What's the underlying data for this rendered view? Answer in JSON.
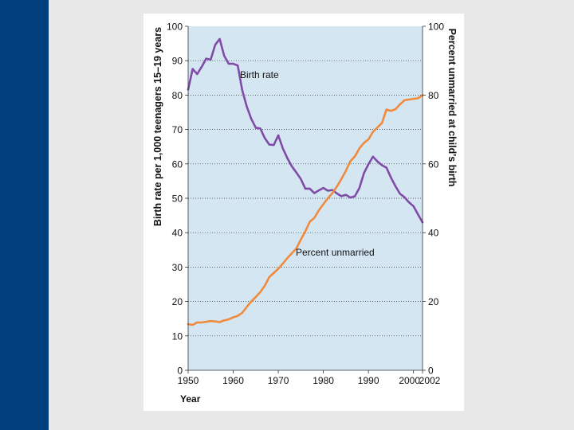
{
  "chart_data": {
    "type": "line",
    "xlabel": "Year",
    "ylabel_left": "Birth rate per 1,000 teenagers 15–19 years",
    "ylabel_right": "Percent unmarried at child's birth",
    "xlim": [
      1950,
      2002
    ],
    "ylim_left": [
      0,
      100
    ],
    "ylim_right": [
      0,
      100
    ],
    "x_ticks": [
      1950,
      1960,
      1970,
      1980,
      1990,
      2000,
      2002
    ],
    "y_ticks_left": [
      0,
      10,
      20,
      30,
      40,
      50,
      60,
      70,
      80,
      90,
      100
    ],
    "y_ticks_right": [
      0,
      20,
      40,
      60,
      80,
      100
    ],
    "grid": "horizontal dotted",
    "plot_background": "#d5e6f3",
    "series": [
      {
        "name": "Birth rate",
        "axis": "left",
        "color": "#7f4ba6",
        "label": "Birth rate",
        "x": [
          1950,
          1951,
          1952,
          1953,
          1954,
          1955,
          1956,
          1957,
          1958,
          1959,
          1960,
          1961,
          1962,
          1963,
          1964,
          1965,
          1966,
          1967,
          1968,
          1969,
          1970,
          1971,
          1972,
          1973,
          1974,
          1975,
          1976,
          1977,
          1978,
          1979,
          1980,
          1981,
          1982,
          1983,
          1984,
          1985,
          1986,
          1987,
          1988,
          1989,
          1990,
          1991,
          1992,
          1993,
          1994,
          1995,
          1996,
          1997,
          1998,
          1999,
          2000,
          2001,
          2002
        ],
        "values": [
          81.6,
          87.6,
          86.1,
          88.2,
          90.6,
          90.3,
          94.6,
          96.3,
          91.4,
          89.1,
          89.1,
          88.6,
          81.4,
          76.7,
          73.1,
          70.5,
          70.3,
          67.5,
          65.6,
          65.5,
          68.3,
          64.5,
          61.7,
          59.3,
          57.5,
          55.6,
          52.8,
          52.8,
          51.5,
          52.3,
          53.0,
          52.2,
          52.4,
          51.4,
          50.6,
          51.0,
          50.2,
          50.6,
          53.0,
          57.3,
          59.9,
          62.1,
          60.7,
          59.6,
          58.9,
          56.0,
          53.5,
          51.3,
          50.3,
          48.8,
          47.7,
          45.3,
          43.0
        ]
      },
      {
        "name": "Percent unmarried",
        "axis": "right",
        "color": "#f08a3c",
        "label": "Percent unmarried",
        "x": [
          1950,
          1951,
          1952,
          1953,
          1954,
          1955,
          1956,
          1957,
          1958,
          1959,
          1960,
          1961,
          1962,
          1963,
          1964,
          1965,
          1966,
          1967,
          1968,
          1969,
          1970,
          1971,
          1972,
          1973,
          1974,
          1975,
          1976,
          1977,
          1978,
          1979,
          1980,
          1981,
          1982,
          1983,
          1984,
          1985,
          1986,
          1987,
          1988,
          1989,
          1990,
          1991,
          1992,
          1993,
          1994,
          1995,
          1996,
          1997,
          1998,
          1999,
          2000,
          2001,
          2002
        ],
        "values": [
          13.4,
          13.2,
          13.9,
          13.9,
          14.1,
          14.3,
          14.2,
          14.0,
          14.5,
          14.8,
          15.4,
          15.8,
          16.7,
          18.4,
          20.0,
          21.3,
          22.7,
          24.6,
          27.1,
          28.3,
          29.5,
          31.0,
          32.6,
          34.0,
          35.4,
          38.0,
          40.4,
          43.2,
          44.3,
          46.5,
          48.3,
          50.0,
          51.5,
          53.4,
          55.6,
          58.0,
          60.8,
          62.2,
          64.5,
          66.1,
          67.1,
          69.3,
          70.6,
          71.9,
          75.8,
          75.4,
          75.9,
          77.3,
          78.5,
          78.7,
          78.9,
          79.1,
          80.0
        ]
      }
    ]
  }
}
